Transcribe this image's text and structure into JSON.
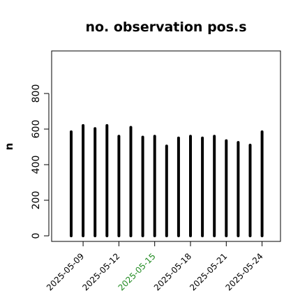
{
  "chart_data": {
    "type": "bar",
    "title": "no. observation pos.s",
    "ylabel": "n",
    "xlabel": "",
    "ylim": [
      0,
      1000
    ],
    "yticks": [
      0,
      200,
      400,
      600,
      800
    ],
    "ytick_labels": [
      "0",
      "200",
      "400",
      "600",
      "800"
    ],
    "grid": false,
    "dates": [
      "2025-05-08",
      "2025-05-09",
      "2025-05-10",
      "2025-05-11",
      "2025-05-12",
      "2025-05-13",
      "2025-05-14",
      "2025-05-15",
      "2025-05-16",
      "2025-05-17",
      "2025-05-18",
      "2025-05-19",
      "2025-05-20",
      "2025-05-21",
      "2025-05-22",
      "2025-05-23",
      "2025-05-24"
    ],
    "values": [
      585,
      620,
      603,
      620,
      560,
      610,
      555,
      560,
      505,
      550,
      560,
      550,
      560,
      535,
      525,
      510,
      585
    ],
    "xticks": [
      "2025-05-09",
      "2025-05-12",
      "2025-05-15",
      "2025-05-18",
      "2025-05-21",
      "2025-05-24"
    ],
    "xtick_colors": [
      "#000000",
      "#000000",
      "#228B22",
      "#000000",
      "#000000",
      "#000000"
    ],
    "bar_color": "#000000"
  }
}
